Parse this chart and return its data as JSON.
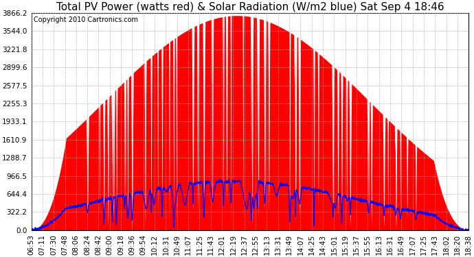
{
  "title": "Total PV Power (watts red) & Solar Radiation (W/m2 blue) Sat Sep 4 18:46",
  "copyright": "Copyright 2010 Cartronics.com",
  "yticks": [
    0.0,
    322.2,
    644.4,
    966.5,
    1288.7,
    1610.9,
    1933.1,
    2255.3,
    2577.5,
    2899.6,
    3221.8,
    3544.0,
    3866.2
  ],
  "ymax": 3866.2,
  "ymin": 0.0,
  "xtick_labels": [
    "06:53",
    "07:11",
    "07:30",
    "07:48",
    "08:06",
    "08:24",
    "08:42",
    "09:00",
    "09:18",
    "09:36",
    "09:54",
    "10:12",
    "10:31",
    "10:49",
    "11:07",
    "11:25",
    "11:43",
    "12:01",
    "12:19",
    "12:37",
    "12:55",
    "13:13",
    "13:31",
    "13:49",
    "14:07",
    "14:25",
    "14:43",
    "15:01",
    "15:19",
    "15:37",
    "15:55",
    "16:13",
    "16:31",
    "16:49",
    "17:07",
    "17:25",
    "17:43",
    "18:02",
    "18:20",
    "18:38"
  ],
  "background_color": "#ffffff",
  "plot_bg_color": "#ffffff",
  "grid_color": "#aaaaaa",
  "red_fill_color": "#ff0000",
  "blue_line_color": "#0000ff",
  "title_fontsize": 11,
  "tick_fontsize": 7.5,
  "copyright_fontsize": 7,
  "n_xtick_labels": 40
}
